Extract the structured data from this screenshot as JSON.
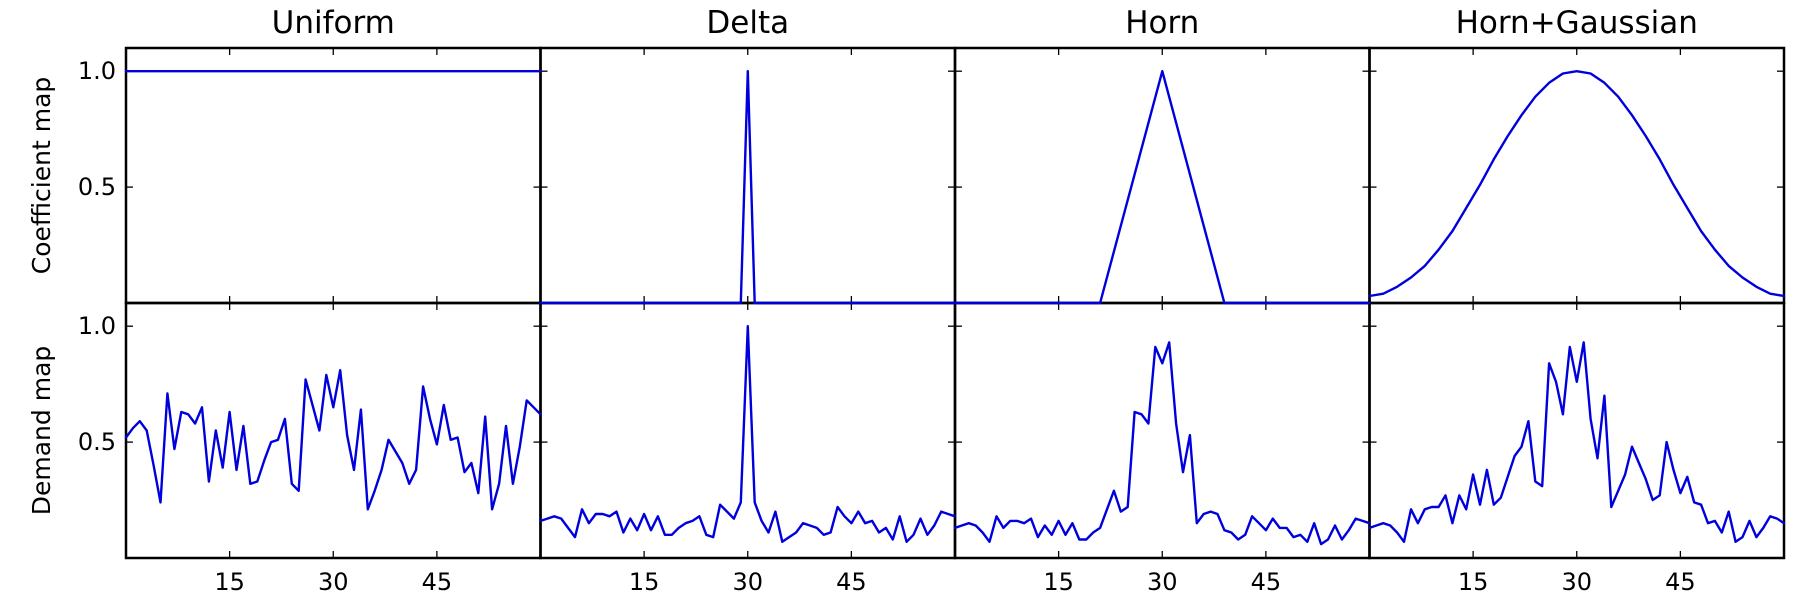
{
  "line_color": "#0000dd",
  "chart_data": {
    "type": "line",
    "columns": [
      "Uniform",
      "Delta",
      "Horn",
      "Horn+Gaussian"
    ],
    "rows": [
      "Coefficient map",
      "Demand map"
    ],
    "xlim": [
      0,
      60
    ],
    "ylim": [
      0,
      1.1
    ],
    "xticks": [
      15,
      30,
      45
    ],
    "xtick_labels": [
      "15",
      "30",
      "45"
    ],
    "yticks": [
      0.5,
      1.0
    ],
    "ytick_labels": [
      "0.5",
      "1.0"
    ],
    "grid": false,
    "legend": "none",
    "panels": [
      {
        "row": 0,
        "col": 0,
        "x": [
          0,
          60
        ],
        "y": [
          1.0,
          1.0
        ]
      },
      {
        "row": 0,
        "col": 1,
        "x": [
          0,
          29,
          30,
          31,
          60
        ],
        "y": [
          0,
          0,
          1.0,
          0,
          0
        ]
      },
      {
        "row": 0,
        "col": 2,
        "x": [
          0,
          21,
          30,
          39,
          60
        ],
        "y": [
          0,
          0,
          1.0,
          0,
          0
        ]
      },
      {
        "row": 0,
        "col": 3,
        "x": [
          0,
          2,
          4,
          6,
          8,
          10,
          12,
          14,
          16,
          18,
          20,
          22,
          24,
          26,
          28,
          30,
          32,
          34,
          36,
          38,
          40,
          42,
          44,
          46,
          48,
          50,
          52,
          54,
          56,
          58,
          60
        ],
        "y": [
          0.03,
          0.04,
          0.07,
          0.11,
          0.16,
          0.23,
          0.31,
          0.41,
          0.51,
          0.62,
          0.72,
          0.81,
          0.89,
          0.95,
          0.99,
          1.0,
          0.99,
          0.95,
          0.89,
          0.81,
          0.72,
          0.62,
          0.51,
          0.41,
          0.31,
          0.23,
          0.16,
          0.11,
          0.07,
          0.04,
          0.03
        ]
      },
      {
        "row": 1,
        "col": 0,
        "x": [
          0,
          1,
          2,
          3,
          4,
          5,
          6,
          7,
          8,
          9,
          10,
          11,
          12,
          13,
          14,
          15,
          16,
          17,
          18,
          19,
          20,
          21,
          22,
          23,
          24,
          25,
          26,
          27,
          28,
          29,
          30,
          31,
          32,
          33,
          34,
          35,
          36,
          37,
          38,
          39,
          40,
          41,
          42,
          43,
          44,
          45,
          46,
          47,
          48,
          49,
          50,
          51,
          52,
          53,
          54,
          55,
          56,
          57,
          58,
          59,
          60
        ],
        "y": [
          0.52,
          0.56,
          0.59,
          0.55,
          0.4,
          0.24,
          0.71,
          0.47,
          0.63,
          0.62,
          0.58,
          0.65,
          0.33,
          0.55,
          0.39,
          0.63,
          0.38,
          0.57,
          0.32,
          0.33,
          0.42,
          0.5,
          0.51,
          0.6,
          0.32,
          0.29,
          0.77,
          0.66,
          0.55,
          0.79,
          0.65,
          0.81,
          0.53,
          0.38,
          0.64,
          0.21,
          0.29,
          0.38,
          0.51,
          0.46,
          0.41,
          0.32,
          0.38,
          0.74,
          0.6,
          0.49,
          0.66,
          0.51,
          0.52,
          0.37,
          0.41,
          0.28,
          0.61,
          0.21,
          0.32,
          0.57,
          0.32,
          0.48,
          0.68,
          0.65,
          0.62
        ]
      },
      {
        "row": 1,
        "col": 1,
        "x": [
          0,
          1,
          2,
          3,
          4,
          5,
          6,
          7,
          8,
          9,
          10,
          11,
          12,
          13,
          14,
          15,
          16,
          17,
          18,
          19,
          20,
          21,
          22,
          23,
          24,
          25,
          26,
          27,
          28,
          29,
          30,
          31,
          32,
          33,
          34,
          35,
          36,
          37,
          38,
          39,
          40,
          41,
          42,
          43,
          44,
          45,
          46,
          47,
          48,
          49,
          50,
          51,
          52,
          53,
          54,
          55,
          56,
          57,
          58,
          59,
          60
        ],
        "y": [
          0.16,
          0.17,
          0.18,
          0.17,
          0.13,
          0.09,
          0.21,
          0.15,
          0.19,
          0.19,
          0.18,
          0.2,
          0.11,
          0.17,
          0.12,
          0.19,
          0.12,
          0.18,
          0.1,
          0.1,
          0.13,
          0.15,
          0.16,
          0.18,
          0.1,
          0.09,
          0.23,
          0.2,
          0.17,
          0.24,
          1.0,
          0.24,
          0.16,
          0.11,
          0.2,
          0.07,
          0.09,
          0.11,
          0.15,
          0.14,
          0.13,
          0.1,
          0.11,
          0.22,
          0.18,
          0.15,
          0.2,
          0.15,
          0.16,
          0.11,
          0.13,
          0.08,
          0.18,
          0.07,
          0.1,
          0.17,
          0.1,
          0.14,
          0.2,
          0.19,
          0.18
        ]
      },
      {
        "row": 1,
        "col": 2,
        "x": [
          0,
          1,
          2,
          3,
          4,
          5,
          6,
          7,
          8,
          9,
          10,
          11,
          12,
          13,
          14,
          15,
          16,
          17,
          18,
          19,
          20,
          21,
          22,
          23,
          24,
          25,
          26,
          27,
          28,
          29,
          30,
          31,
          32,
          33,
          34,
          35,
          36,
          37,
          38,
          39,
          40,
          41,
          42,
          43,
          44,
          45,
          46,
          47,
          48,
          49,
          50,
          51,
          52,
          53,
          54,
          55,
          56,
          57,
          58,
          59,
          60
        ],
        "y": [
          0.13,
          0.14,
          0.15,
          0.14,
          0.11,
          0.07,
          0.18,
          0.13,
          0.16,
          0.16,
          0.15,
          0.17,
          0.09,
          0.14,
          0.1,
          0.16,
          0.1,
          0.15,
          0.08,
          0.08,
          0.11,
          0.13,
          0.21,
          0.29,
          0.2,
          0.22,
          0.63,
          0.62,
          0.58,
          0.91,
          0.84,
          0.93,
          0.58,
          0.37,
          0.53,
          0.15,
          0.19,
          0.2,
          0.19,
          0.12,
          0.11,
          0.08,
          0.1,
          0.18,
          0.15,
          0.12,
          0.17,
          0.13,
          0.13,
          0.09,
          0.1,
          0.07,
          0.15,
          0.06,
          0.08,
          0.14,
          0.08,
          0.12,
          0.17,
          0.16,
          0.15
        ]
      },
      {
        "row": 1,
        "col": 3,
        "x": [
          0,
          1,
          2,
          3,
          4,
          5,
          6,
          7,
          8,
          9,
          10,
          11,
          12,
          13,
          14,
          15,
          16,
          17,
          18,
          19,
          20,
          21,
          22,
          23,
          24,
          25,
          26,
          27,
          28,
          29,
          30,
          31,
          32,
          33,
          34,
          35,
          36,
          37,
          38,
          39,
          40,
          41,
          42,
          43,
          44,
          45,
          46,
          47,
          48,
          49,
          50,
          51,
          52,
          53,
          54,
          55,
          56,
          57,
          58,
          59,
          60
        ],
        "y": [
          0.13,
          0.14,
          0.15,
          0.14,
          0.11,
          0.07,
          0.21,
          0.15,
          0.21,
          0.22,
          0.22,
          0.27,
          0.15,
          0.27,
          0.21,
          0.36,
          0.23,
          0.38,
          0.23,
          0.26,
          0.35,
          0.44,
          0.48,
          0.59,
          0.33,
          0.31,
          0.84,
          0.76,
          0.62,
          0.91,
          0.76,
          0.93,
          0.6,
          0.43,
          0.7,
          0.22,
          0.29,
          0.36,
          0.48,
          0.41,
          0.34,
          0.25,
          0.27,
          0.5,
          0.38,
          0.28,
          0.35,
          0.24,
          0.23,
          0.15,
          0.16,
          0.11,
          0.2,
          0.07,
          0.09,
          0.16,
          0.09,
          0.13,
          0.18,
          0.17,
          0.15
        ]
      }
    ]
  }
}
